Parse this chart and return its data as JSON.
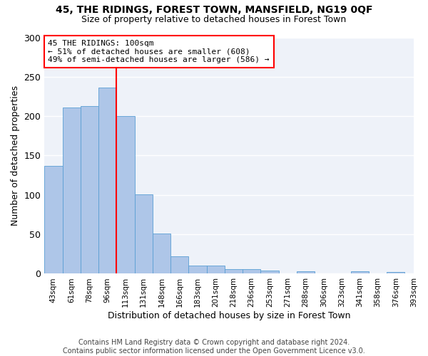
{
  "title1": "45, THE RIDINGS, FOREST TOWN, MANSFIELD, NG19 0QF",
  "title2": "Size of property relative to detached houses in Forest Town",
  "xlabel": "Distribution of detached houses by size in Forest Town",
  "ylabel": "Number of detached properties",
  "footer1": "Contains HM Land Registry data © Crown copyright and database right 2024.",
  "footer2": "Contains public sector information licensed under the Open Government Licence v3.0.",
  "annotation_line1": "45 THE RIDINGS: 100sqm",
  "annotation_line2": "← 51% of detached houses are smaller (608)",
  "annotation_line3": "49% of semi-detached houses are larger (586) →",
  "bar_values": [
    137,
    211,
    213,
    236,
    200,
    101,
    51,
    22,
    10,
    10,
    6,
    6,
    4,
    0,
    3,
    0,
    0,
    3,
    0,
    2
  ],
  "tick_labels": [
    "43sqm",
    "61sqm",
    "78sqm",
    "96sqm",
    "113sqm",
    "131sqm",
    "148sqm",
    "166sqm",
    "183sqm",
    "201sqm",
    "218sqm",
    "236sqm",
    "253sqm",
    "271sqm",
    "288sqm",
    "306sqm",
    "323sqm",
    "341sqm",
    "358sqm",
    "376sqm",
    "393sqm"
  ],
  "bar_color": "#aec6e8",
  "bar_edge_color": "#5a9fd4",
  "red_line_x": 3.5,
  "ylim": [
    0,
    300
  ],
  "yticks": [
    0,
    50,
    100,
    150,
    200,
    250,
    300
  ],
  "bg_color": "#eef2f9",
  "grid_color": "#ffffff",
  "title1_fontsize": 10,
  "title2_fontsize": 9,
  "ylabel_fontsize": 9,
  "xlabel_fontsize": 9,
  "ann_fontsize": 8,
  "footer_fontsize": 7
}
